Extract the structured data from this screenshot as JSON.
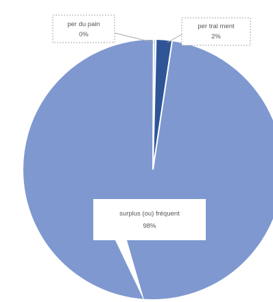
{
  "chart_data": {
    "type": "pie",
    "slices": [
      {
        "label": "per du pain",
        "percent_label": "0%",
        "value": 0.3,
        "color": "#b6c4e4"
      },
      {
        "label": "per tral ment",
        "percent_label": "2%",
        "value": 2.0,
        "color": "#2f5597"
      },
      {
        "label": "surplus (ou) fréquent",
        "percent_label": "98%",
        "value": 97.7,
        "color": "#7f98d0"
      }
    ],
    "legend": "none",
    "data_labels": "callouts"
  }
}
